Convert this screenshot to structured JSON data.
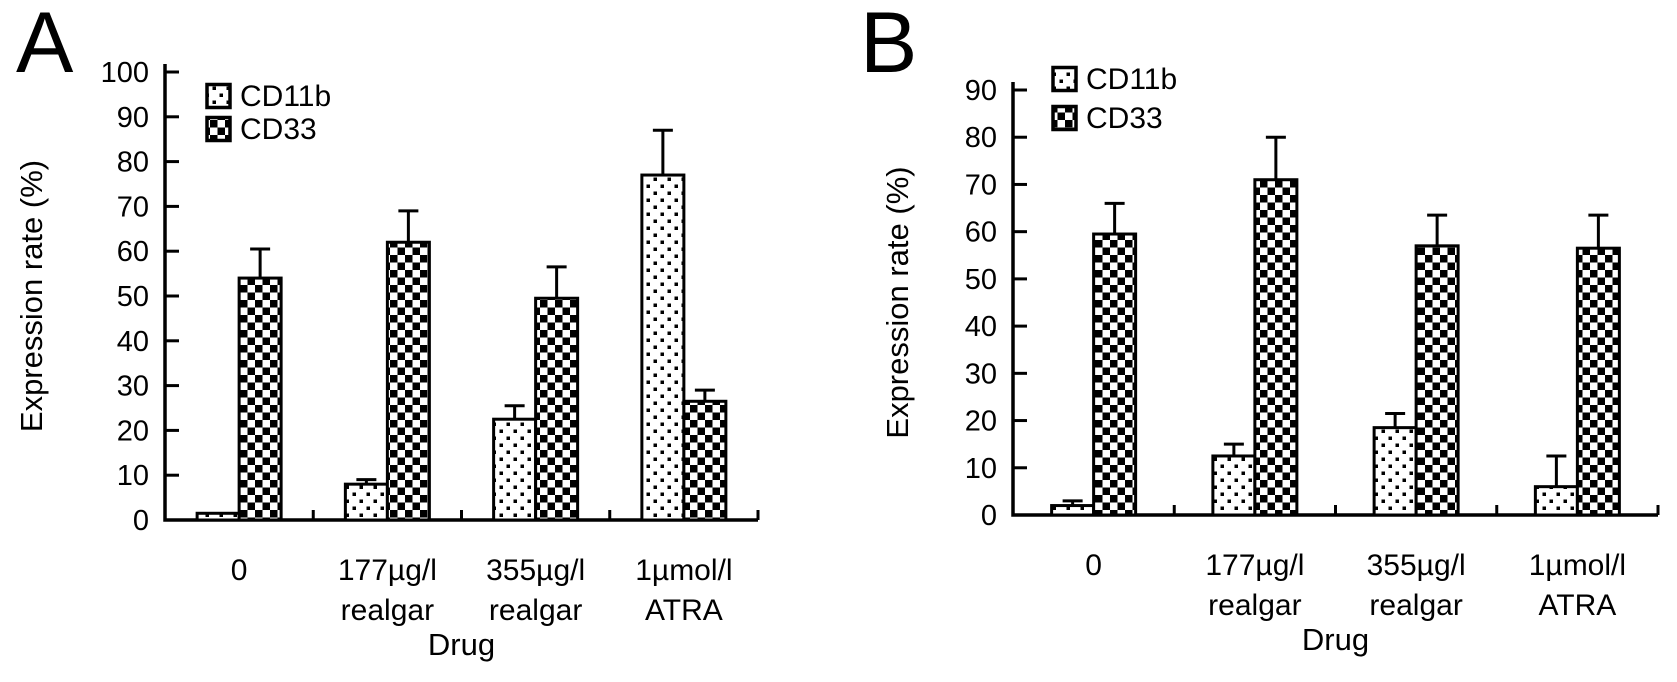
{
  "figure": {
    "background": "#ffffff",
    "ink": "#000000",
    "description_labels": {
      "panel_a": "A",
      "panel_b": "B"
    }
  },
  "chart_data": [
    {
      "panel_label": "A",
      "type": "bar",
      "title": "",
      "xlabel": "Drug",
      "ylabel": "Expression rate (%)",
      "ylim": [
        0,
        100
      ],
      "yticks": [
        0,
        10,
        20,
        30,
        40,
        50,
        60,
        70,
        80,
        90,
        100
      ],
      "grid": false,
      "legend_position": "top-left-inside",
      "legend": [
        "CD11b",
        "CD33"
      ],
      "categories": [
        [
          "0"
        ],
        [
          "177µg/l",
          "realgar"
        ],
        [
          "355µg/l",
          "realgar"
        ],
        [
          "1µmol/l",
          "ATRA"
        ]
      ],
      "series": [
        {
          "name": "CD11b",
          "pattern": "dots",
          "values": [
            1.5,
            8,
            22.5,
            77
          ],
          "errors": [
            0,
            1,
            3,
            10
          ]
        },
        {
          "name": "CD33",
          "pattern": "checker",
          "values": [
            54,
            62,
            49.5,
            26.5
          ],
          "errors": [
            6.5,
            7,
            7,
            2.5
          ]
        }
      ]
    },
    {
      "panel_label": "B",
      "type": "bar",
      "title": "",
      "xlabel": "Drug",
      "ylabel": "Expression rate (%)",
      "ylim": [
        0,
        90
      ],
      "yticks": [
        0,
        10,
        20,
        30,
        40,
        50,
        60,
        70,
        80,
        90
      ],
      "grid": false,
      "legend_position": "top-left-inside",
      "legend": [
        "CD11b",
        "CD33"
      ],
      "categories": [
        [
          "0"
        ],
        [
          "177µg/l",
          "realgar"
        ],
        [
          "355µg/l",
          "realgar"
        ],
        [
          "1µmol/l",
          "ATRA"
        ]
      ],
      "series": [
        {
          "name": "CD11b",
          "pattern": "dots",
          "values": [
            2,
            12.5,
            18.5,
            6
          ],
          "errors": [
            1,
            2.5,
            3,
            6.5
          ]
        },
        {
          "name": "CD33",
          "pattern": "checker",
          "values": [
            59.5,
            71,
            57,
            56.5
          ],
          "errors": [
            6.5,
            9,
            6.5,
            7
          ]
        }
      ]
    }
  ]
}
